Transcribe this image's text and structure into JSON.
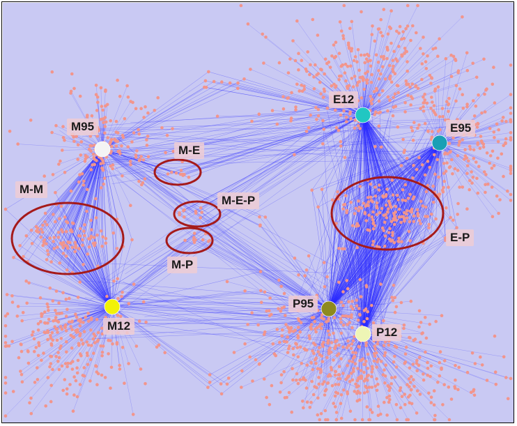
{
  "colors": {
    "background": "#c9c9f3",
    "node": "#f2958c",
    "edge": "#2b2bff",
    "ellipse": "#a51a1a",
    "label_box": "#efcfd5"
  },
  "hubs": [
    {
      "id": "M95",
      "label": "M95",
      "color": "#f4f4f4"
    },
    {
      "id": "M12",
      "label": "M12",
      "color": "#f2f208"
    },
    {
      "id": "E12",
      "label": "E12",
      "color": "#21c7c2"
    },
    {
      "id": "E95",
      "label": "E95",
      "color": "#1a9fb5"
    },
    {
      "id": "P95",
      "label": "P95",
      "color": "#8e8a1e"
    },
    {
      "id": "P12",
      "label": "P12",
      "color": "#eef5b5"
    }
  ],
  "regions": [
    {
      "id": "M-M",
      "label": "M-M"
    },
    {
      "id": "M-E",
      "label": "M-E"
    },
    {
      "id": "M-E-P",
      "label": "M-E-P"
    },
    {
      "id": "M-P",
      "label": "M-P"
    },
    {
      "id": "E-P",
      "label": "E-P"
    }
  ]
}
